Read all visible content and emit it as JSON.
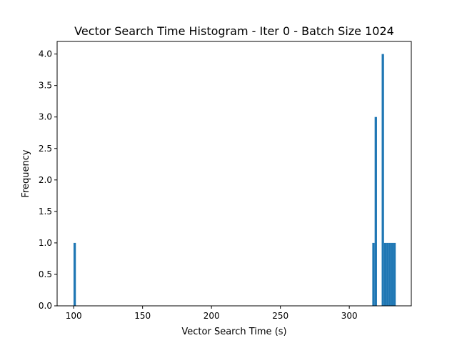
{
  "chart_data": {
    "type": "bar",
    "title": "Vector Search Time Histogram - Iter 0 - Batch Size 1024",
    "xlabel": "Vector Search Time (s)",
    "ylabel": "Frequency",
    "xlim": [
      88,
      345
    ],
    "ylim": [
      0,
      4.2
    ],
    "x_ticks": [
      100,
      150,
      200,
      250,
      300
    ],
    "y_ticks": [
      0.0,
      0.5,
      1.0,
      1.5,
      2.0,
      2.5,
      3.0,
      3.5,
      4.0
    ],
    "x_tick_labels": [
      "100",
      "150",
      "200",
      "250",
      "300"
    ],
    "y_tick_labels": [
      "0.0",
      "0.5",
      "1.0",
      "1.5",
      "2.0",
      "2.5",
      "3.0",
      "3.5",
      "4.0"
    ],
    "bar_color": "#1f77b4",
    "grid": false,
    "bins": [
      {
        "x0": 99.9,
        "x1": 101.6,
        "count": 1
      },
      {
        "x0": 316.7,
        "x1": 318.4,
        "count": 1
      },
      {
        "x0": 318.4,
        "x1": 320.1,
        "count": 3
      },
      {
        "x0": 323.5,
        "x1": 325.2,
        "count": 4
      },
      {
        "x0": 325.2,
        "x1": 326.9,
        "count": 1
      },
      {
        "x0": 326.9,
        "x1": 328.6,
        "count": 1
      },
      {
        "x0": 328.6,
        "x1": 330.3,
        "count": 1
      },
      {
        "x0": 330.3,
        "x1": 332.0,
        "count": 1
      },
      {
        "x0": 332.0,
        "x1": 333.7,
        "count": 1
      }
    ]
  }
}
